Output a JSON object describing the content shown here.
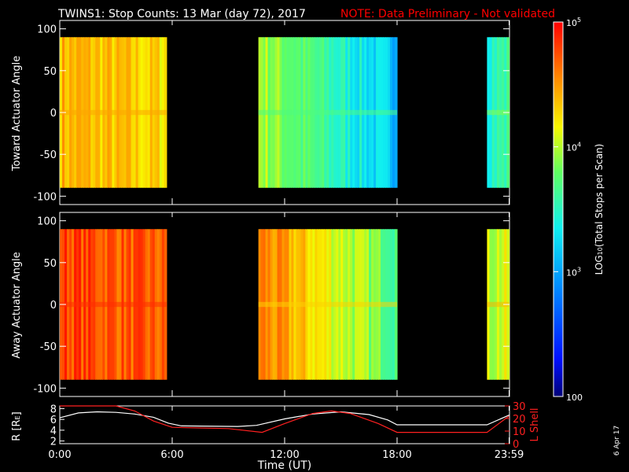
{
  "title": "TWINS1: Stop Counts: 13 Mar (day  72), 2017",
  "note": "NOTE: Data Preliminary - Not validated",
  "date_stamp": "6 Apr 17",
  "colors": {
    "background": "#000000",
    "foreground": "#ffffff",
    "note": "#ff0000",
    "r_line": "#ffffff",
    "lshell_line": "#ff2020"
  },
  "chart_data": [
    {
      "type": "heatmap",
      "panel": "toward",
      "ylabel": "Toward Actuator Angle",
      "ylim": [
        -110,
        110
      ],
      "yticks": [
        100,
        50,
        0,
        -50,
        -100
      ],
      "angle_range": [
        -90,
        90
      ],
      "xlim": [
        0,
        24
      ],
      "data_blocks": [
        {
          "start": 0.0,
          "end": 5.7,
          "mean_log10_counts": 4.15
        },
        {
          "start": 10.6,
          "end": 18.0,
          "mean_log10_counts": 3.4
        },
        {
          "start": 22.8,
          "end": 23.98,
          "mean_log10_counts": 3.6
        }
      ]
    },
    {
      "type": "heatmap",
      "panel": "away",
      "ylabel": "Away Actuator Angle",
      "ylim": [
        -110,
        110
      ],
      "yticks": [
        100,
        50,
        0,
        -50,
        -100
      ],
      "angle_range": [
        -90,
        90
      ],
      "xlim": [
        0,
        24
      ],
      "data_blocks": [
        {
          "start": 0.0,
          "end": 5.7,
          "mean_log10_counts": 4.55
        },
        {
          "start": 10.6,
          "end": 18.0,
          "mean_log10_counts": 4.0
        },
        {
          "start": 22.8,
          "end": 23.98,
          "mean_log10_counts": 4.1
        }
      ]
    },
    {
      "type": "line",
      "panel": "orbit",
      "ylabel": "R [R",
      "ylabel_sub": "E",
      "ylabel_end": "]",
      "y2label": "L Shell",
      "ylim": [
        1.5,
        8.5
      ],
      "yticks": [
        8,
        6,
        4,
        2
      ],
      "y2lim": [
        0,
        30
      ],
      "y2ticks": [
        30,
        20,
        10,
        0
      ],
      "xlabel": "Time (UT)",
      "xlim": [
        0,
        24
      ],
      "xticks": [
        "0:00",
        "6:00",
        "12:00",
        "18:00",
        "23:59"
      ],
      "xtick_values": [
        0,
        6,
        12,
        18,
        23.98
      ],
      "series": [
        {
          "axis": "left",
          "x": [
            0,
            1,
            2,
            3,
            4,
            5,
            5.8,
            6.5,
            9.5,
            10.5,
            12,
            13.5,
            15,
            16.5,
            17.5,
            18,
            22.8,
            23.98
          ],
          "values": [
            6.3,
            7.2,
            7.4,
            7.3,
            7.0,
            6.4,
            5.3,
            4.8,
            4.7,
            4.9,
            6.1,
            7.0,
            7.4,
            6.9,
            5.9,
            5.0,
            5.0,
            6.8
          ]
        },
        {
          "axis": "right",
          "x": [
            0,
            1,
            3,
            4,
            5,
            6,
            9,
            10.8,
            12,
            13.5,
            14.5,
            15.5,
            17,
            18,
            22.8,
            23.98
          ],
          "values": [
            30,
            32,
            32,
            26,
            18,
            13,
            12,
            9,
            16,
            24,
            26,
            24,
            16,
            9,
            9,
            22
          ]
        }
      ]
    },
    {
      "type": "colorbar",
      "label": "LOG",
      "label_sub": "10",
      "label_end": "(Total Stops per Scan)",
      "scale": "log",
      "range": [
        100,
        100000
      ],
      "tick_base": "10",
      "tick_exps": [
        "5",
        "4",
        "3"
      ],
      "min_label": "100"
    }
  ]
}
